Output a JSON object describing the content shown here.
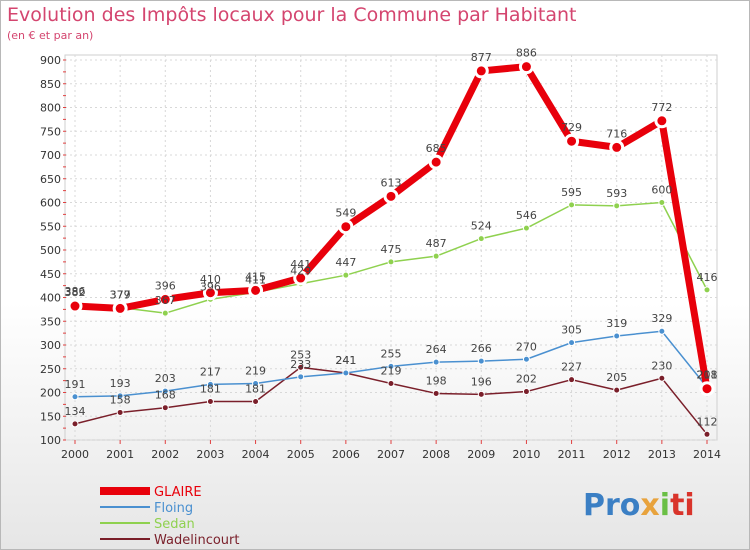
{
  "chart_data": {
    "type": "line",
    "title": "Evolution des Impôts locaux pour la Commune par Habitant",
    "subtitle": "(en € et par an)",
    "x": [
      "2000",
      "2001",
      "2002",
      "2003",
      "2004",
      "2005",
      "2006",
      "2007",
      "2008",
      "2009",
      "2010",
      "2011",
      "2012",
      "2013",
      "2014"
    ],
    "ylim": [
      100,
      900
    ],
    "yticks": [
      100,
      150,
      200,
      250,
      300,
      350,
      400,
      450,
      500,
      550,
      600,
      650,
      700,
      750,
      800,
      850,
      900
    ],
    "grid": true,
    "legend_position": "bottom-left",
    "series": [
      {
        "name": "GLAIRE",
        "color": "#e8000b",
        "values": [
          382,
          377,
          396,
          410,
          415,
          441,
          549,
          613,
          685,
          877,
          886,
          729,
          716,
          772,
          208
        ],
        "labels": [
          "382",
          "377",
          "396",
          "410",
          "415",
          "441",
          "549",
          "613",
          "685",
          "877",
          "886",
          "729",
          "716",
          "772",
          "208"
        ]
      },
      {
        "name": "Floing",
        "color": "#4a90d0",
        "values": [
          191,
          193,
          203,
          217,
          219,
          233,
          241,
          255,
          264,
          266,
          270,
          305,
          319,
          329,
          211
        ],
        "labels": [
          "191",
          "193",
          "203",
          "217",
          "219",
          "233",
          "241",
          "255",
          "264",
          "266",
          "270",
          "305",
          "319",
          "329",
          "211"
        ]
      },
      {
        "name": "Sedan",
        "color": "#8fd14f",
        "values": [
          386,
          379,
          367,
          396,
          411,
          429,
          447,
          475,
          487,
          524,
          546,
          595,
          593,
          600,
          416
        ],
        "labels": [
          "386",
          "379",
          "367",
          "396",
          "411",
          "429",
          "447",
          "475",
          "487",
          "524",
          "546",
          "595",
          "593",
          "600",
          "416"
        ]
      },
      {
        "name": "Wadelincourt",
        "color": "#7a1f2a",
        "values": [
          134,
          158,
          168,
          181,
          181,
          253,
          241,
          219,
          198,
          196,
          202,
          227,
          205,
          230,
          112
        ],
        "labels": [
          "134",
          "158",
          "168",
          "181",
          "181",
          "253",
          "241",
          "219",
          "198",
          "196",
          "202",
          "227",
          "205",
          "230",
          "112"
        ]
      }
    ]
  },
  "logo": {
    "p1": "Pro",
    "p2": "x",
    "p3": "i",
    "p4": "ti"
  }
}
